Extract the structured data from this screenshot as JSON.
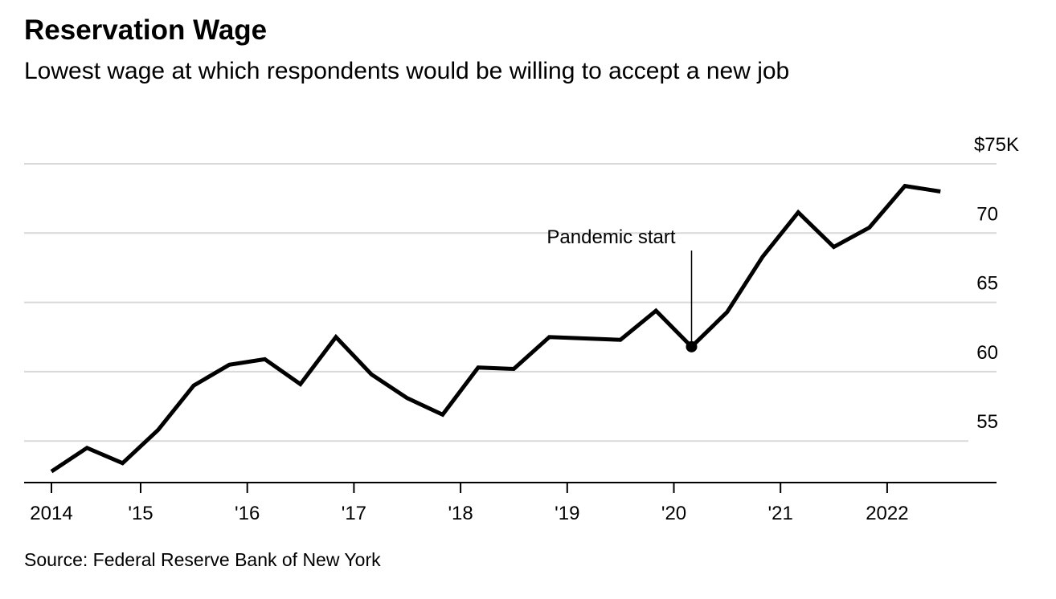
{
  "chart_data": {
    "type": "line",
    "title": "Reservation Wage",
    "subtitle": "Lowest wage at which respondents would be willing to accept a new job",
    "source": "Source: Federal Reserve Bank of New York",
    "xlabel": "",
    "ylabel": "",
    "x": [
      "Mar 2014",
      "Jul 2014",
      "Nov 2014",
      "Mar 2015",
      "Jul 2015",
      "Nov 2015",
      "Mar 2016",
      "Jul 2016",
      "Nov 2016",
      "Mar 2017",
      "Jul 2017",
      "Nov 2017",
      "Mar 2018",
      "Jul 2018",
      "Nov 2018",
      "Mar 2019",
      "Jul 2019",
      "Nov 2019",
      "Mar 2020",
      "Jul 2020",
      "Nov 2020",
      "Mar 2021",
      "Jul 2021",
      "Nov 2021",
      "Mar 2022",
      "Jul 2022"
    ],
    "series": [
      {
        "name": "Reservation wage ($K)",
        "values": [
          52.8,
          54.5,
          53.4,
          55.8,
          59.0,
          60.5,
          60.9,
          59.1,
          62.5,
          59.8,
          58.1,
          56.9,
          60.3,
          60.2,
          62.5,
          62.4,
          62.3,
          64.4,
          61.8,
          64.3,
          68.3,
          71.5,
          69.0,
          70.4,
          73.4,
          73.0
        ]
      }
    ],
    "ylim": [
      52,
      75
    ],
    "yticks": [
      {
        "value": 55,
        "label": "55"
      },
      {
        "value": 60,
        "label": "60"
      },
      {
        "value": 65,
        "label": "65"
      },
      {
        "value": 70,
        "label": "70"
      },
      {
        "value": 75,
        "label": "$75K"
      }
    ],
    "xticks": [
      {
        "year": 2014.2,
        "label": "2014"
      },
      {
        "year": 2015,
        "label": "'15"
      },
      {
        "year": 2016,
        "label": "'16"
      },
      {
        "year": 2017,
        "label": "'17"
      },
      {
        "year": 2018,
        "label": "'18"
      },
      {
        "year": 2019,
        "label": "'19"
      },
      {
        "year": 2020,
        "label": "'20"
      },
      {
        "year": 2021,
        "label": "'21"
      },
      {
        "year": 2022,
        "label": "2022"
      }
    ],
    "annotation": {
      "label": "Pandemic start",
      "point_index": 18
    },
    "grid": true,
    "line_color": "#000000",
    "grid_color": "#d9d9d9"
  }
}
